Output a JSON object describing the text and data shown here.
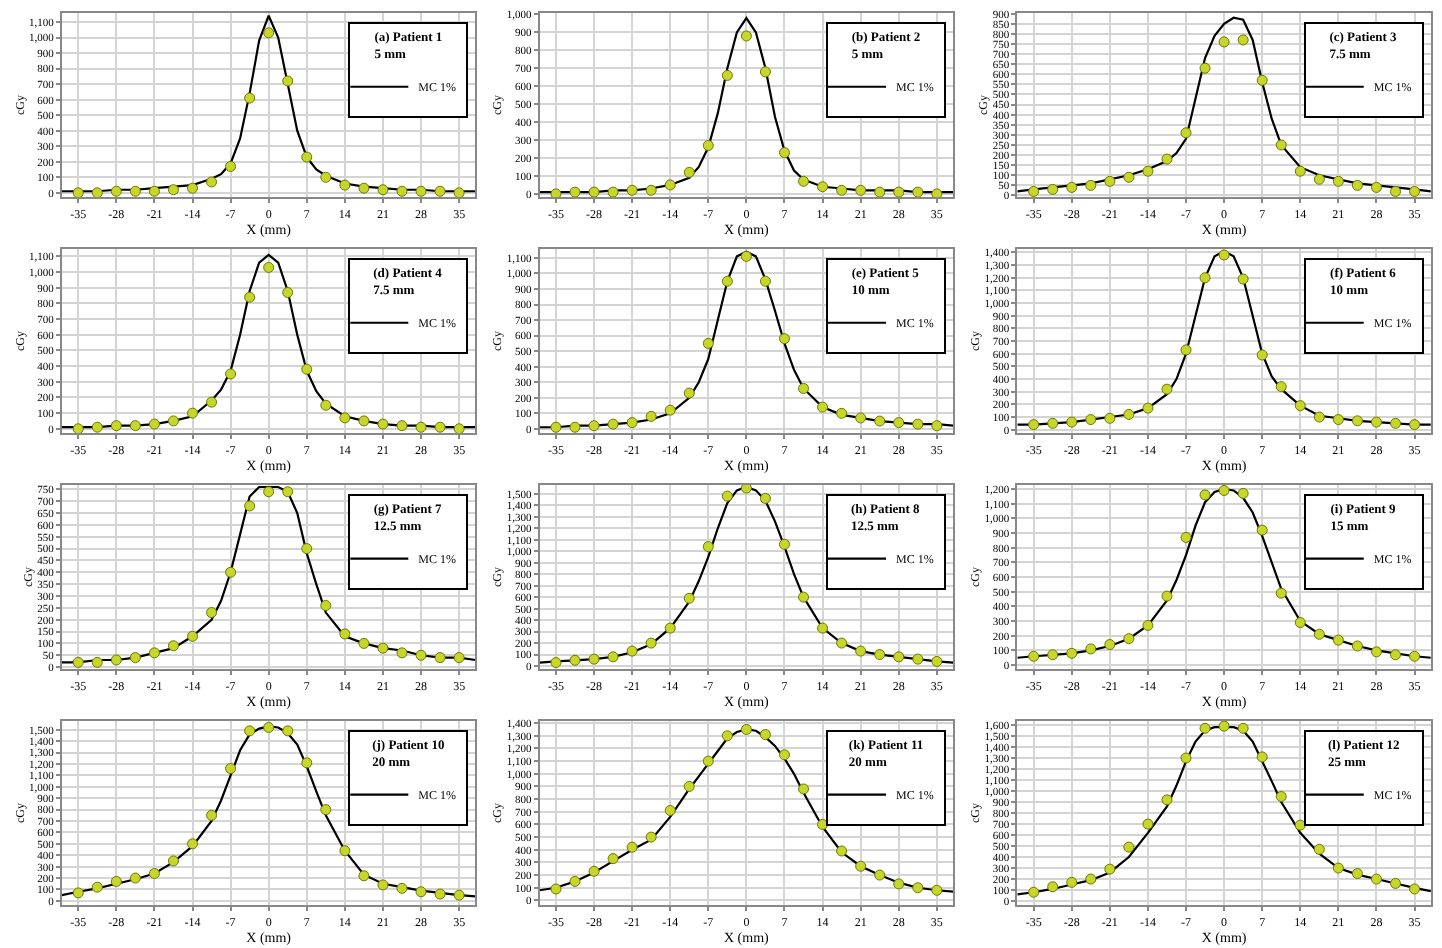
{
  "chart_data": [
    {
      "type": "line",
      "title": "(a) Patient 1",
      "subtitle": "5 mm",
      "xlabel": "X (mm)",
      "ylabel": "cGy",
      "xlim": [
        -38,
        38
      ],
      "xticks": [
        -35,
        -28,
        -21,
        -14,
        -7,
        0,
        7,
        14,
        21,
        28,
        35
      ],
      "ylim": [
        -30,
        1160
      ],
      "yticks": [
        0,
        100,
        200,
        300,
        400,
        500,
        600,
        700,
        800,
        900,
        {
          "value": 1000,
          "label": "1,000"
        },
        {
          "value": 1100,
          "label": "1,100"
        }
      ],
      "grid": true,
      "legend": "top right",
      "series": [
        {
          "name": "MC 1%",
          "color": "#000000",
          "marker": "none",
          "x": [
            -38,
            -35,
            -31.5,
            -28,
            -24.5,
            -21,
            -17.5,
            -14,
            -10.5,
            -8.75,
            -7,
            -5.25,
            -3.5,
            -1.75,
            0,
            1.75,
            3.5,
            5.25,
            7,
            8.75,
            10.5,
            14,
            17.5,
            21,
            24.5,
            28,
            31.5,
            35,
            38
          ],
          "values": [
            10,
            10,
            10,
            20,
            20,
            30,
            40,
            50,
            90,
            120,
            190,
            350,
            640,
            980,
            1140,
            1000,
            700,
            400,
            230,
            150,
            110,
            60,
            40,
            30,
            20,
            20,
            10,
            10,
            10
          ]
        },
        {
          "type": "scatter",
          "color": "#c8d62b",
          "marker": "circle",
          "x": [
            -35,
            -31.5,
            -28,
            -24.5,
            -21,
            -17.5,
            -14,
            -10.5,
            -7,
            -3.5,
            0,
            3.5,
            7,
            10.5,
            14,
            17.5,
            21,
            24.5,
            28,
            31.5,
            35
          ],
          "values": [
            0,
            0,
            10,
            10,
            10,
            20,
            30,
            70,
            170,
            610,
            1030,
            720,
            230,
            100,
            50,
            30,
            20,
            10,
            10,
            10,
            0
          ]
        }
      ]
    },
    {
      "type": "line",
      "title": "(b) Patient 2",
      "subtitle": "5 mm",
      "xlabel": "X (mm)",
      "ylabel": "cGy",
      "xlim": [
        -38,
        38
      ],
      "xticks": [
        -35,
        -28,
        -21,
        -14,
        -7,
        0,
        7,
        14,
        21,
        28,
        35
      ],
      "ylim": [
        -20,
        1010
      ],
      "yticks": [
        0,
        100,
        200,
        300,
        400,
        500,
        600,
        700,
        800,
        900,
        {
          "value": 1000,
          "label": "1,000"
        }
      ],
      "grid": true,
      "legend": "top right",
      "series": [
        {
          "name": "MC 1%",
          "color": "#000000",
          "marker": "none",
          "x": [
            -38,
            -35,
            -31.5,
            -28,
            -24.5,
            -21,
            -17.5,
            -14,
            -10.5,
            -8.75,
            -7,
            -5.25,
            -3.5,
            -1.75,
            0,
            1.75,
            3.5,
            5.25,
            7,
            8.75,
            10.5,
            14,
            17.5,
            21,
            24.5,
            28,
            31.5,
            35,
            38
          ],
          "values": [
            10,
            10,
            10,
            10,
            20,
            20,
            30,
            50,
            90,
            150,
            260,
            450,
            700,
            900,
            980,
            900,
            700,
            430,
            240,
            130,
            80,
            40,
            30,
            20,
            20,
            20,
            10,
            10,
            10
          ]
        },
        {
          "type": "scatter",
          "color": "#c8d62b",
          "marker": "circle",
          "x": [
            -35,
            -31.5,
            -28,
            -24.5,
            -21,
            -17.5,
            -14,
            -10.5,
            -7,
            -3.5,
            0,
            3.5,
            7,
            10.5,
            14,
            17.5,
            21,
            24.5,
            28,
            31.5,
            35
          ],
          "values": [
            0,
            10,
            10,
            10,
            20,
            20,
            50,
            120,
            270,
            660,
            880,
            680,
            230,
            70,
            40,
            20,
            20,
            10,
            10,
            10,
            0
          ]
        }
      ]
    },
    {
      "type": "line",
      "title": "(c) Patient 3",
      "subtitle": "7.5 mm",
      "xlabel": "X (mm)",
      "ylabel": "cGy",
      "xlim": [
        -38,
        38
      ],
      "xticks": [
        -35,
        -28,
        -21,
        -14,
        -7,
        0,
        7,
        14,
        21,
        28,
        35
      ],
      "ylim": [
        -10,
        905
      ],
      "yticks": [
        0,
        50,
        100,
        150,
        200,
        250,
        300,
        350,
        400,
        450,
        500,
        550,
        600,
        650,
        700,
        750,
        800,
        850,
        900
      ],
      "grid": true,
      "legend": "top right",
      "series": [
        {
          "name": "MC 1%",
          "color": "#000000",
          "marker": "none",
          "x": [
            -38,
            -35,
            -31.5,
            -28,
            -24.5,
            -21,
            -17.5,
            -14,
            -10.5,
            -8.75,
            -7,
            -5.25,
            -3.5,
            -1.75,
            0,
            1.75,
            3.5,
            5.25,
            7,
            8.75,
            10.5,
            14,
            17.5,
            21,
            24.5,
            28,
            31.5,
            35,
            38
          ],
          "values": [
            20,
            30,
            40,
            50,
            60,
            80,
            100,
            130,
            170,
            210,
            280,
            480,
            680,
            790,
            850,
            880,
            870,
            770,
            560,
            380,
            250,
            140,
            100,
            80,
            60,
            50,
            40,
            30,
            20
          ]
        },
        {
          "type": "scatter",
          "color": "#c8d62b",
          "marker": "circle",
          "x": [
            -35,
            -31.5,
            -28,
            -24.5,
            -21,
            -17.5,
            -14,
            -10.5,
            -7,
            -3.5,
            0,
            3.5,
            7,
            10.5,
            14,
            17.5,
            21,
            24.5,
            28,
            31.5,
            35
          ],
          "values": [
            20,
            30,
            40,
            50,
            70,
            90,
            120,
            180,
            310,
            630,
            760,
            770,
            570,
            250,
            120,
            80,
            70,
            50,
            40,
            20,
            20
          ]
        }
      ]
    },
    {
      "type": "line",
      "title": "(d) Patient 4",
      "subtitle": "7.5 mm",
      "xlabel": "X (mm)",
      "ylabel": "cGy",
      "xlim": [
        -38,
        38
      ],
      "xticks": [
        -35,
        -28,
        -21,
        -14,
        -7,
        0,
        7,
        14,
        21,
        28,
        35
      ],
      "ylim": [
        -30,
        1150
      ],
      "yticks": [
        0,
        100,
        200,
        300,
        400,
        500,
        600,
        700,
        800,
        900,
        {
          "value": 1000,
          "label": "1,000"
        },
        {
          "value": 1100,
          "label": "1,100"
        }
      ],
      "grid": true,
      "legend": "top right",
      "series": [
        {
          "name": "MC 1%",
          "color": "#000000",
          "marker": "none",
          "x": [
            -38,
            -35,
            -31.5,
            -28,
            -24.5,
            -21,
            -17.5,
            -14,
            -10.5,
            -8.75,
            -7,
            -5.25,
            -3.5,
            -1.75,
            0,
            1.75,
            3.5,
            5.25,
            7,
            8.75,
            10.5,
            14,
            17.5,
            21,
            24.5,
            28,
            31.5,
            35,
            38
          ],
          "values": [
            10,
            10,
            10,
            20,
            20,
            30,
            50,
            80,
            180,
            250,
            370,
            600,
            880,
            1060,
            1110,
            1060,
            880,
            600,
            370,
            240,
            160,
            80,
            50,
            30,
            20,
            20,
            10,
            10,
            10
          ]
        },
        {
          "type": "scatter",
          "color": "#c8d62b",
          "marker": "circle",
          "x": [
            -35,
            -31.5,
            -28,
            -24.5,
            -21,
            -17.5,
            -14,
            -10.5,
            -7,
            -3.5,
            0,
            3.5,
            7,
            10.5,
            14,
            17.5,
            21,
            24.5,
            28,
            31.5,
            35
          ],
          "values": [
            0,
            10,
            20,
            20,
            30,
            50,
            100,
            170,
            350,
            840,
            1030,
            870,
            380,
            150,
            70,
            50,
            30,
            20,
            10,
            10,
            0
          ]
        }
      ]
    },
    {
      "type": "line",
      "title": "(e) Patient 5",
      "subtitle": "10 mm",
      "xlabel": "X (mm)",
      "ylabel": "cGy",
      "xlim": [
        -38,
        38
      ],
      "xticks": [
        -35,
        -28,
        -21,
        -14,
        -7,
        0,
        7,
        14,
        21,
        28,
        35
      ],
      "ylim": [
        -30,
        1160
      ],
      "yticks": [
        0,
        100,
        200,
        300,
        400,
        500,
        600,
        700,
        800,
        900,
        {
          "value": 1000,
          "label": "1,000"
        },
        {
          "value": 1100,
          "label": "1,100"
        }
      ],
      "grid": true,
      "legend": "top right",
      "series": [
        {
          "name": "MC 1%",
          "color": "#000000",
          "marker": "none",
          "x": [
            -38,
            -35,
            -31.5,
            -28,
            -24.5,
            -21,
            -17.5,
            -14,
            -10.5,
            -8.75,
            -7,
            -5.25,
            -3.5,
            -1.75,
            0,
            1.75,
            3.5,
            5.25,
            7,
            8.75,
            10.5,
            14,
            17.5,
            21,
            24.5,
            28,
            31.5,
            35,
            38
          ],
          "values": [
            10,
            10,
            20,
            20,
            30,
            40,
            60,
            100,
            200,
            300,
            450,
            700,
            950,
            1110,
            1140,
            1110,
            960,
            760,
            550,
            380,
            260,
            140,
            90,
            70,
            50,
            40,
            30,
            30,
            20
          ]
        },
        {
          "type": "scatter",
          "color": "#c8d62b",
          "marker": "circle",
          "x": [
            -35,
            -31.5,
            -28,
            -24.5,
            -21,
            -17.5,
            -14,
            -10.5,
            -7,
            -3.5,
            0,
            3.5,
            7,
            10.5,
            14,
            17.5,
            21,
            24.5,
            28,
            31.5,
            35
          ],
          "values": [
            10,
            10,
            20,
            30,
            40,
            80,
            120,
            230,
            550,
            950,
            1110,
            950,
            580,
            260,
            140,
            100,
            70,
            50,
            40,
            30,
            20
          ]
        }
      ]
    },
    {
      "type": "line",
      "title": "(f) Patient 6",
      "subtitle": "10 mm",
      "xlabel": "X (mm)",
      "ylabel": "cGy",
      "xlim": [
        -38,
        38
      ],
      "xticks": [
        -35,
        -28,
        -21,
        -14,
        -7,
        0,
        7,
        14,
        21,
        28,
        35
      ],
      "ylim": [
        -30,
        1430
      ],
      "yticks": [
        0,
        100,
        200,
        300,
        400,
        500,
        600,
        700,
        800,
        900,
        {
          "value": 1000,
          "label": "1,000"
        },
        {
          "value": 1100,
          "label": "1,100"
        },
        {
          "value": 1200,
          "label": "1,200"
        },
        {
          "value": 1300,
          "label": "1,300"
        },
        {
          "value": 1400,
          "label": "1,400"
        }
      ],
      "grid": true,
      "legend": "top right",
      "series": [
        {
          "name": "MC 1%",
          "color": "#000000",
          "marker": "none",
          "x": [
            -38,
            -35,
            -31.5,
            -28,
            -24.5,
            -21,
            -17.5,
            -14,
            -10.5,
            -8.75,
            -7,
            -5.25,
            -3.5,
            -1.75,
            0,
            1.75,
            3.5,
            5.25,
            7,
            8.75,
            10.5,
            14,
            17.5,
            21,
            24.5,
            28,
            31.5,
            35,
            38
          ],
          "values": [
            40,
            40,
            50,
            60,
            80,
            100,
            120,
            170,
            280,
            400,
            600,
            900,
            1200,
            1370,
            1410,
            1370,
            1200,
            900,
            600,
            420,
            320,
            190,
            110,
            90,
            70,
            60,
            50,
            40,
            40
          ]
        },
        {
          "type": "scatter",
          "color": "#c8d62b",
          "marker": "circle",
          "x": [
            -35,
            -31.5,
            -28,
            -24.5,
            -21,
            -17.5,
            -14,
            -10.5,
            -7,
            -3.5,
            0,
            3.5,
            7,
            10.5,
            14,
            17.5,
            21,
            24.5,
            28,
            31.5,
            35
          ],
          "values": [
            40,
            50,
            60,
            80,
            90,
            120,
            170,
            320,
            630,
            1200,
            1380,
            1190,
            590,
            340,
            190,
            100,
            80,
            70,
            60,
            50,
            40
          ]
        }
      ]
    },
    {
      "type": "line",
      "title": "(g) Patient 7",
      "subtitle": "12.5 mm",
      "xlabel": "X (mm)",
      "ylabel": "cGy",
      "xlim": [
        -38,
        38
      ],
      "xticks": [
        -35,
        -28,
        -21,
        -14,
        -7,
        0,
        7,
        14,
        21,
        28,
        35
      ],
      "ylim": [
        -10,
        770
      ],
      "yticks": [
        0,
        50,
        100,
        150,
        200,
        250,
        300,
        350,
        400,
        450,
        500,
        550,
        600,
        650,
        700,
        750
      ],
      "grid": true,
      "legend": "top right",
      "series": [
        {
          "name": "MC 1%",
          "color": "#000000",
          "marker": "none",
          "x": [
            -38,
            -35,
            -31.5,
            -28,
            -24.5,
            -21,
            -17.5,
            -14,
            -10.5,
            -8.75,
            -7,
            -5.25,
            -3.5,
            -1.75,
            0,
            1.75,
            3.5,
            5.25,
            7,
            8.75,
            10.5,
            14,
            17.5,
            21,
            24.5,
            28,
            31.5,
            35,
            38
          ],
          "values": [
            20,
            20,
            30,
            30,
            40,
            60,
            80,
            130,
            200,
            280,
            400,
            560,
            720,
            760,
            760,
            760,
            740,
            650,
            480,
            350,
            230,
            130,
            100,
            80,
            70,
            50,
            40,
            40,
            30
          ]
        },
        {
          "type": "scatter",
          "color": "#c8d62b",
          "marker": "circle",
          "x": [
            -35,
            -31.5,
            -28,
            -24.5,
            -21,
            -17.5,
            -14,
            -10.5,
            -7,
            -3.5,
            0,
            3.5,
            7,
            10.5,
            14,
            17.5,
            21,
            24.5,
            28,
            31.5,
            35
          ],
          "values": [
            20,
            20,
            30,
            40,
            60,
            90,
            130,
            230,
            400,
            680,
            740,
            740,
            500,
            260,
            140,
            100,
            80,
            60,
            50,
            40,
            40
          ]
        }
      ]
    },
    {
      "type": "line",
      "title": "(h) Patient 8",
      "subtitle": "12.5 mm",
      "xlabel": "X (mm)",
      "ylabel": "cGy",
      "xlim": [
        -38,
        38
      ],
      "xticks": [
        -35,
        -28,
        -21,
        -14,
        -7,
        0,
        7,
        14,
        21,
        28,
        35
      ],
      "ylim": [
        -30,
        1580
      ],
      "yticks": [
        0,
        100,
        200,
        300,
        400,
        500,
        600,
        700,
        800,
        900,
        {
          "value": 1000,
          "label": "1,000"
        },
        {
          "value": 1100,
          "label": "1,100"
        },
        {
          "value": 1200,
          "label": "1,200"
        },
        {
          "value": 1300,
          "label": "1,300"
        },
        {
          "value": 1400,
          "label": "1,400"
        },
        {
          "value": 1500,
          "label": "1,500"
        }
      ],
      "grid": true,
      "legend": "top right",
      "series": [
        {
          "name": "MC 1%",
          "color": "#000000",
          "marker": "none",
          "x": [
            -38,
            -35,
            -31.5,
            -28,
            -24.5,
            -21,
            -17.5,
            -14,
            -10.5,
            -8.75,
            -7,
            -5.25,
            -3.5,
            -1.75,
            0,
            1.75,
            3.5,
            5.25,
            7,
            8.75,
            10.5,
            14,
            17.5,
            21,
            24.5,
            28,
            31.5,
            35,
            38
          ],
          "values": [
            30,
            40,
            50,
            60,
            80,
            120,
            190,
            330,
            560,
            740,
            950,
            1200,
            1420,
            1530,
            1560,
            1530,
            1440,
            1260,
            1040,
            800,
            600,
            330,
            200,
            130,
            100,
            80,
            60,
            40,
            30
          ]
        },
        {
          "type": "scatter",
          "color": "#c8d62b",
          "marker": "circle",
          "x": [
            -35,
            -31.5,
            -28,
            -24.5,
            -21,
            -17.5,
            -14,
            -10.5,
            -7,
            -3.5,
            0,
            3.5,
            7,
            10.5,
            14,
            17.5,
            21,
            24.5,
            28,
            31.5,
            35
          ],
          "values": [
            30,
            50,
            60,
            80,
            130,
            200,
            330,
            590,
            1040,
            1480,
            1550,
            1460,
            1060,
            600,
            330,
            200,
            130,
            100,
            80,
            60,
            40
          ]
        }
      ]
    },
    {
      "type": "line",
      "title": "(i) Patient 9",
      "subtitle": "15 mm",
      "xlabel": "X (mm)",
      "ylabel": "cGy",
      "xlim": [
        -38,
        38
      ],
      "xticks": [
        -35,
        -28,
        -21,
        -14,
        -7,
        0,
        7,
        14,
        21,
        28,
        35
      ],
      "ylim": [
        -30,
        1230
      ],
      "yticks": [
        0,
        100,
        200,
        300,
        400,
        500,
        600,
        700,
        800,
        900,
        {
          "value": 1000,
          "label": "1,000"
        },
        {
          "value": 1100,
          "label": "1,100"
        },
        {
          "value": 1200,
          "label": "1,200"
        }
      ],
      "grid": true,
      "legend": "top right",
      "series": [
        {
          "name": "MC 1%",
          "color": "#000000",
          "marker": "none",
          "x": [
            -38,
            -35,
            -31.5,
            -28,
            -24.5,
            -21,
            -17.5,
            -14,
            -10.5,
            -8.75,
            -7,
            -5.25,
            -3.5,
            -1.75,
            0,
            1.75,
            3.5,
            5.25,
            7,
            8.75,
            10.5,
            14,
            17.5,
            21,
            24.5,
            28,
            31.5,
            35,
            38
          ],
          "values": [
            50,
            60,
            70,
            80,
            100,
            130,
            180,
            270,
            440,
            580,
            750,
            950,
            1110,
            1180,
            1200,
            1190,
            1140,
            1040,
            880,
            700,
            520,
            300,
            210,
            170,
            130,
            100,
            80,
            60,
            50
          ]
        },
        {
          "type": "scatter",
          "color": "#c8d62b",
          "marker": "circle",
          "x": [
            -35,
            -31.5,
            -28,
            -24.5,
            -21,
            -17.5,
            -14,
            -10.5,
            -7,
            -3.5,
            0,
            3.5,
            7,
            10.5,
            14,
            17.5,
            21,
            24.5,
            28,
            31.5,
            35
          ],
          "values": [
            60,
            70,
            80,
            110,
            140,
            180,
            270,
            470,
            870,
            1160,
            1190,
            1170,
            920,
            490,
            290,
            210,
            170,
            130,
            90,
            70,
            60
          ]
        }
      ]
    },
    {
      "type": "line",
      "title": "(j) Patient 10",
      "subtitle": "20 mm",
      "xlabel": "X (mm)",
      "ylabel": "cGy",
      "xlim": [
        -38,
        38
      ],
      "xticks": [
        -35,
        -28,
        -21,
        -14,
        -7,
        0,
        7,
        14,
        21,
        28,
        35
      ],
      "ylim": [
        -40,
        1580
      ],
      "yticks": [
        0,
        100,
        200,
        300,
        400,
        500,
        600,
        700,
        800,
        900,
        {
          "value": 1000,
          "label": "1,000"
        },
        {
          "value": 1100,
          "label": "1,100"
        },
        {
          "value": 1200,
          "label": "1,200"
        },
        {
          "value": 1300,
          "label": "1,300"
        },
        {
          "value": 1400,
          "label": "1,400"
        },
        {
          "value": 1500,
          "label": "1,500"
        }
      ],
      "grid": true,
      "legend": "top right",
      "series": [
        {
          "name": "MC 1%",
          "color": "#000000",
          "marker": "none",
          "x": [
            -38,
            -35,
            -31.5,
            -28,
            -24.5,
            -21,
            -17.5,
            -14,
            -10.5,
            -8.75,
            -7,
            -5.25,
            -3.5,
            -1.75,
            0,
            1.75,
            3.5,
            5.25,
            7,
            8.75,
            10.5,
            14,
            17.5,
            21,
            24.5,
            28,
            31.5,
            35,
            38
          ],
          "values": [
            50,
            80,
            110,
            150,
            190,
            240,
            340,
            480,
            700,
            880,
            1100,
            1320,
            1460,
            1510,
            1530,
            1520,
            1470,
            1370,
            1180,
            960,
            750,
            440,
            230,
            150,
            120,
            90,
            70,
            50,
            40
          ]
        },
        {
          "type": "scatter",
          "color": "#c8d62b",
          "marker": "circle",
          "x": [
            -35,
            -31.5,
            -28,
            -24.5,
            -21,
            -17.5,
            -14,
            -10.5,
            -7,
            -3.5,
            0,
            3.5,
            7,
            10.5,
            14,
            17.5,
            21,
            24.5,
            28,
            31.5,
            35
          ],
          "values": [
            70,
            120,
            170,
            200,
            240,
            350,
            500,
            750,
            1160,
            1490,
            1520,
            1490,
            1210,
            800,
            440,
            220,
            140,
            110,
            80,
            60,
            50
          ]
        }
      ]
    },
    {
      "type": "line",
      "title": "(k) Patient 11",
      "subtitle": "20 mm",
      "xlabel": "X (mm)",
      "ylabel": "cGy",
      "xlim": [
        -38,
        38
      ],
      "xticks": [
        -35,
        -28,
        -21,
        -14,
        -7,
        0,
        7,
        14,
        21,
        28,
        35
      ],
      "ylim": [
        -40,
        1420
      ],
      "yticks": [
        0,
        100,
        200,
        300,
        400,
        500,
        600,
        700,
        800,
        900,
        {
          "value": 1000,
          "label": "1,000"
        },
        {
          "value": 1100,
          "label": "1,100"
        },
        {
          "value": 1200,
          "label": "1,200"
        },
        {
          "value": 1300,
          "label": "1,300"
        },
        {
          "value": 1400,
          "label": "1,400"
        }
      ],
      "grid": true,
      "legend": "top right",
      "series": [
        {
          "name": "MC 1%",
          "color": "#000000",
          "marker": "none",
          "x": [
            -38,
            -35,
            -31.5,
            -28,
            -24.5,
            -21,
            -17.5,
            -14,
            -10.5,
            -8.75,
            -7,
            -5.25,
            -3.5,
            -1.75,
            0,
            1.75,
            3.5,
            5.25,
            7,
            8.75,
            10.5,
            14,
            17.5,
            21,
            24.5,
            28,
            31.5,
            35,
            38
          ],
          "values": [
            80,
            100,
            150,
            220,
            310,
            400,
            480,
            660,
            880,
            980,
            1080,
            1180,
            1280,
            1330,
            1350,
            1340,
            1290,
            1220,
            1120,
            1000,
            850,
            580,
            380,
            270,
            200,
            140,
            100,
            80,
            70
          ]
        },
        {
          "type": "scatter",
          "color": "#c8d62b",
          "marker": "circle",
          "x": [
            -35,
            -31.5,
            -28,
            -24.5,
            -21,
            -17.5,
            -14,
            -10.5,
            -7,
            -3.5,
            0,
            3.5,
            7,
            10.5,
            14,
            17.5,
            21,
            24.5,
            28,
            31.5,
            35
          ],
          "values": [
            90,
            150,
            230,
            330,
            420,
            500,
            710,
            900,
            1100,
            1300,
            1350,
            1310,
            1150,
            880,
            600,
            390,
            270,
            200,
            130,
            100,
            80
          ]
        }
      ]
    },
    {
      "type": "line",
      "title": "(l) Patient 12",
      "subtitle": "25 mm",
      "xlabel": "X (mm)",
      "ylabel": "cGy",
      "xlim": [
        -38,
        38
      ],
      "xticks": [
        -35,
        -28,
        -21,
        -14,
        -7,
        0,
        7,
        14,
        21,
        28,
        35
      ],
      "ylim": [
        -40,
        1640
      ],
      "yticks": [
        0,
        100,
        200,
        300,
        400,
        500,
        600,
        700,
        800,
        900,
        {
          "value": 1000,
          "label": "1,000"
        },
        {
          "value": 1100,
          "label": "1,100"
        },
        {
          "value": 1200,
          "label": "1,200"
        },
        {
          "value": 1300,
          "label": "1,300"
        },
        {
          "value": 1400,
          "label": "1,400"
        },
        {
          "value": 1500,
          "label": "1,500"
        },
        {
          "value": 1600,
          "label": "1,600"
        }
      ],
      "grid": true,
      "legend": "top right",
      "series": [
        {
          "name": "MC 1%",
          "color": "#000000",
          "marker": "none",
          "x": [
            -38,
            -35,
            -31.5,
            -28,
            -24.5,
            -21,
            -17.5,
            -14,
            -10.5,
            -8.75,
            -7,
            -5.25,
            -3.5,
            -1.75,
            0,
            1.75,
            3.5,
            5.25,
            7,
            8.75,
            10.5,
            14,
            17.5,
            21,
            24.5,
            28,
            31.5,
            35,
            38
          ],
          "values": [
            60,
            80,
            110,
            150,
            190,
            260,
            400,
            620,
            860,
            1050,
            1270,
            1450,
            1550,
            1580,
            1580,
            1580,
            1550,
            1450,
            1270,
            1090,
            900,
            620,
            430,
            300,
            240,
            200,
            160,
            120,
            90
          ]
        },
        {
          "type": "scatter",
          "color": "#c8d62b",
          "marker": "circle",
          "x": [
            -35,
            -31.5,
            -28,
            -24.5,
            -21,
            -17.5,
            -14,
            -10.5,
            -7,
            -3.5,
            0,
            3.5,
            7,
            10.5,
            14,
            17.5,
            21,
            24.5,
            28,
            31.5,
            35
          ],
          "values": [
            80,
            130,
            170,
            200,
            290,
            490,
            700,
            920,
            1300,
            1570,
            1590,
            1570,
            1310,
            950,
            690,
            470,
            300,
            250,
            200,
            160,
            110
          ]
        }
      ]
    }
  ]
}
